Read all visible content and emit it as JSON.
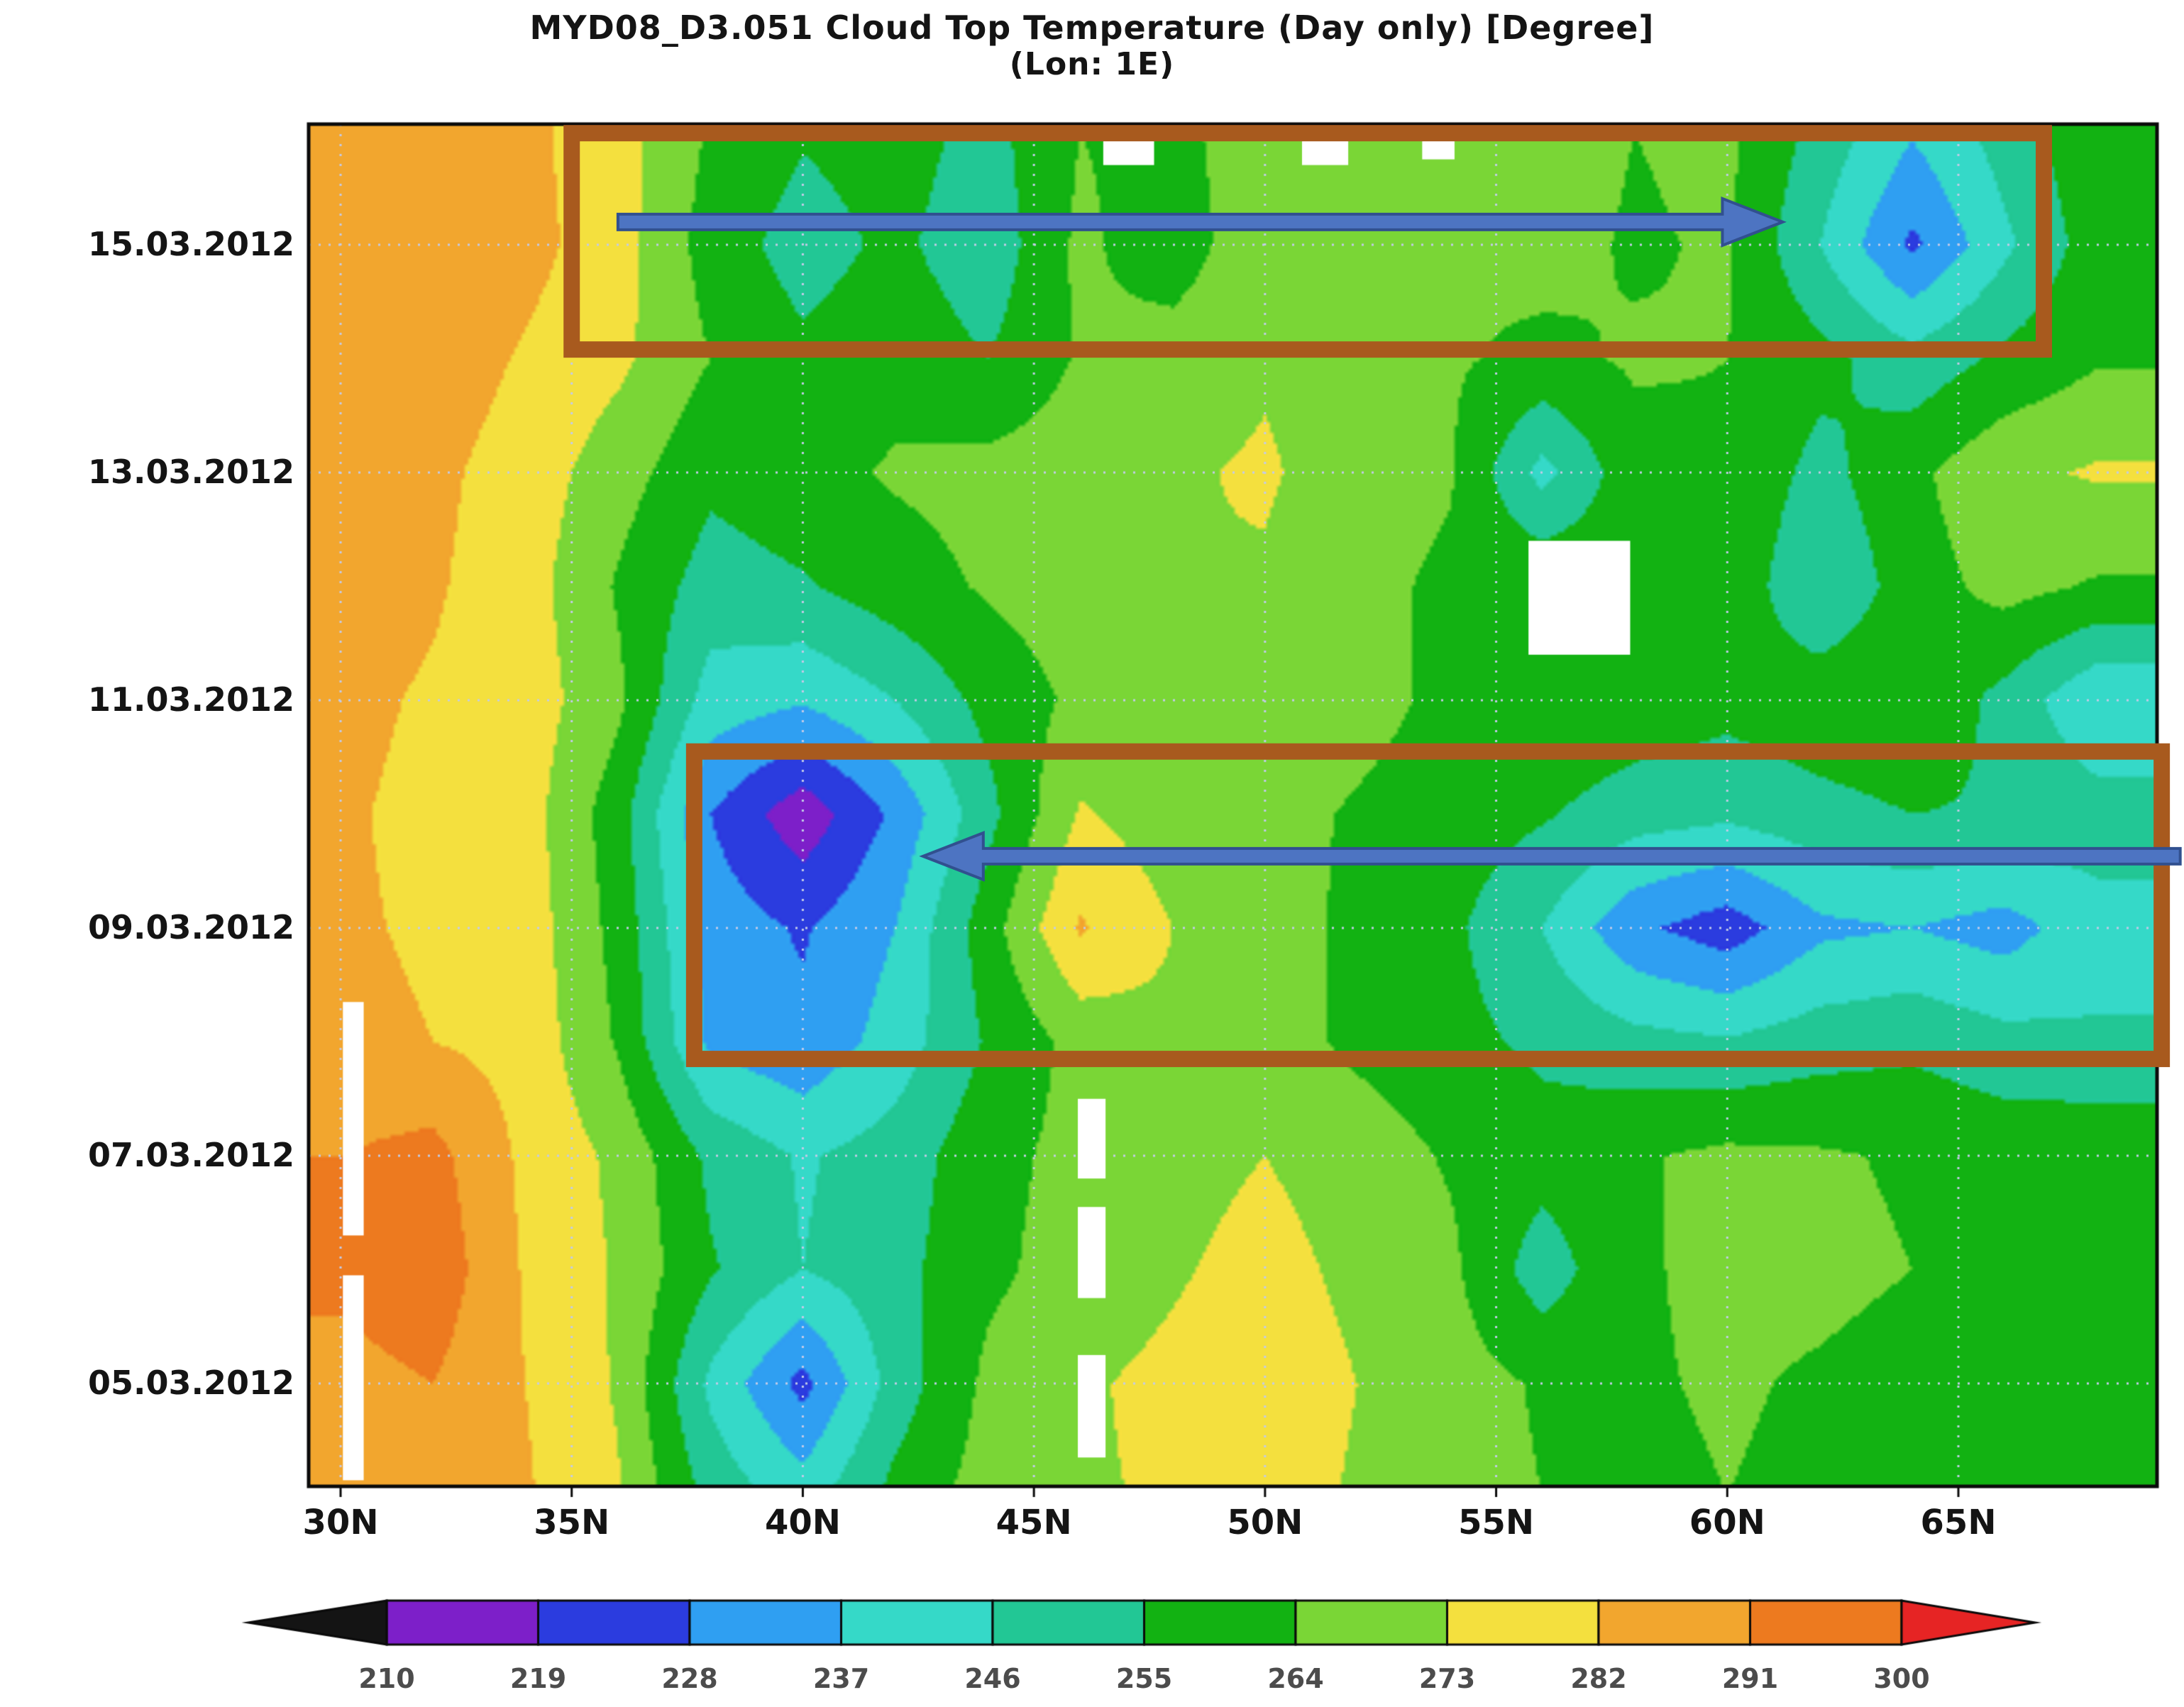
{
  "title": "MYD08_D3.051 Cloud Top Temperature (Day only) [Degree]",
  "subtitle": "(Lon: 1E)",
  "chart_data": {
    "type": "heatmap",
    "title": "MYD08_D3.051 Cloud Top Temperature (Day only) [Degree]",
    "subtitle": "(Lon: 1E)",
    "x_axis": {
      "tick_labels": [
        "30N",
        "35N",
        "40N",
        "45N",
        "50N",
        "55N",
        "60N",
        "65N"
      ],
      "tick_values": [
        30,
        35,
        40,
        45,
        50,
        55,
        60,
        65
      ],
      "range": [
        29.3,
        69.3
      ]
    },
    "y_axis": {
      "tick_labels": [
        "15.03.2012",
        "13.03.2012",
        "11.03.2012",
        "09.03.2012",
        "07.03.2012",
        "05.03.2012"
      ],
      "tick_values": [
        15,
        13,
        11,
        9,
        7,
        5
      ],
      "range_days_march_2012": [
        4.1,
        16.05
      ]
    },
    "grid": {
      "lats": [
        30,
        32,
        34,
        36,
        38,
        40,
        42,
        44,
        46,
        48,
        50,
        52,
        54,
        56,
        58,
        60,
        62,
        64,
        66,
        68
      ],
      "days_march_2012": [
        4,
        5,
        6,
        7,
        8,
        9,
        10,
        11,
        12,
        13,
        14,
        15,
        16
      ],
      "values": [
        [
          286,
          289,
          283,
          274,
          252,
          242,
          258,
          268,
          272,
          274,
          277,
          272,
          268,
          264,
          262,
          264,
          262,
          261,
          259,
          262
        ],
        [
          288,
          291,
          282,
          272,
          244,
          225,
          250,
          266,
          272,
          275,
          278,
          273,
          268,
          263,
          263,
          265,
          263,
          261,
          259,
          261
        ],
        [
          293,
          297,
          281,
          272,
          256,
          246,
          252,
          262,
          268,
          272,
          276,
          271,
          266,
          250,
          263,
          266,
          266,
          264,
          262,
          263
        ],
        [
          291,
          294,
          280,
          271,
          253,
          245,
          250,
          261,
          267,
          270,
          273,
          269,
          263,
          259,
          263,
          266,
          265,
          263,
          261,
          262
        ],
        [
          284,
          282,
          279,
          263,
          235,
          230,
          241,
          256,
          267,
          271,
          268,
          262,
          258,
          253,
          249,
          247,
          251,
          253,
          249,
          247
        ],
        [
          283,
          281,
          278,
          261,
          233,
          227,
          237,
          260,
          283,
          273,
          268,
          262,
          257,
          246,
          230,
          223,
          235,
          237,
          233,
          243
        ],
        [
          283,
          280,
          277,
          259,
          228,
          213,
          230,
          252,
          274,
          268,
          267,
          263,
          260,
          256,
          250,
          248,
          252,
          255,
          254,
          250
        ],
        [
          284,
          281,
          278,
          266,
          242,
          238,
          246,
          258,
          266,
          269,
          271,
          267,
          262,
          263,
          261,
          258,
          261,
          263,
          252,
          238
        ],
        [
          286,
          283,
          277,
          263,
          251,
          254,
          260,
          265,
          269,
          273,
          272,
          267,
          262,
          263,
          261,
          262,
          246,
          260,
          267,
          263
        ],
        [
          287,
          284,
          278,
          268,
          257,
          261,
          265,
          267,
          269,
          272,
          274,
          269,
          265,
          243,
          261,
          263,
          252,
          262,
          271,
          274
        ],
        [
          288,
          287,
          281,
          275,
          264,
          257,
          261,
          255,
          265,
          269,
          272,
          270,
          265,
          262,
          265,
          264,
          258,
          249,
          257,
          263
        ],
        [
          288,
          290,
          285,
          277,
          260,
          251,
          257,
          249,
          266,
          258,
          272,
          271,
          265,
          267,
          263,
          265,
          246,
          226,
          244,
          260
        ],
        [
          287,
          289,
          284,
          277,
          263,
          256,
          259,
          252,
          264,
          261,
          270,
          272,
          266,
          268,
          264,
          266,
          252,
          238,
          250,
          262
        ]
      ]
    },
    "levels": [
      210,
      219,
      228,
      237,
      246,
      255,
      264,
      273,
      282,
      291,
      300
    ],
    "colorbar_labels": [
      "210",
      "219",
      "228",
      "237",
      "246",
      "255",
      "264",
      "273",
      "282",
      "291",
      "300"
    ],
    "palette": {
      "under": "#141414",
      "bins": [
        "#7d1fc9",
        "#2b3cdf",
        "#2f9ff2",
        "#35d9c8",
        "#22c795",
        "#12b212",
        "#7ad636",
        "#f4e03e",
        "#f2a62e",
        "#ed7a1f"
      ],
      "over": "#e62424",
      "grid_dots": "#c3cbe8",
      "box": "#a85a1e",
      "arrow_fill": "#4d74c2",
      "arrow_stroke": "#31508f",
      "missing": "#ffffff"
    },
    "missing_data_patches": [
      {
        "lat": [
          30.05,
          30.5
        ],
        "day": [
          4.15,
          5.95
        ]
      },
      {
        "lat": [
          30.05,
          30.5
        ],
        "day": [
          6.3,
          8.35
        ]
      },
      {
        "lat": [
          45.95,
          46.55
        ],
        "day": [
          4.35,
          5.25
        ]
      },
      {
        "lat": [
          45.95,
          46.55
        ],
        "day": [
          5.75,
          6.55
        ]
      },
      {
        "lat": [
          45.95,
          46.55
        ],
        "day": [
          6.8,
          7.5
        ]
      },
      {
        "lat": [
          55.7,
          57.9
        ],
        "day": [
          11.4,
          12.4
        ]
      },
      {
        "lat": [
          46.5,
          47.6
        ],
        "day": [
          15.7,
          16.1
        ]
      },
      {
        "lat": [
          50.8,
          51.8
        ],
        "day": [
          15.7,
          16.1
        ]
      },
      {
        "lat": [
          53.4,
          54.1
        ],
        "day": [
          15.75,
          16.1
        ]
      }
    ],
    "annotations": {
      "boxes": [
        {
          "name": "highlight-box-top",
          "lat": [
            35.0,
            66.85
          ],
          "day": [
            14.08,
            15.98
          ]
        },
        {
          "name": "highlight-box-middle",
          "lat": [
            37.65,
            69.4
          ],
          "day": [
            7.85,
            10.55
          ]
        }
      ],
      "arrows": [
        {
          "name": "eastward-propagation-arrow",
          "from_lat": 36.0,
          "to_lat": 61.2,
          "day": 15.2,
          "direction": "right"
        },
        {
          "name": "westward-propagation-arrow",
          "from_lat": 69.8,
          "to_lat": 42.6,
          "day": 9.63,
          "direction": "left"
        }
      ]
    }
  }
}
